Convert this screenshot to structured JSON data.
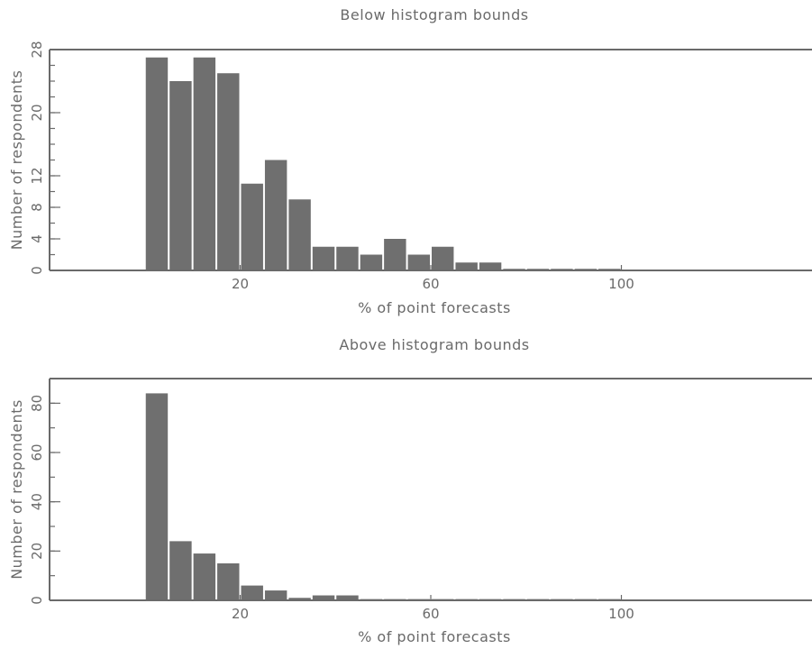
{
  "chart_data": [
    {
      "type": "bar",
      "title": "Below histogram bounds",
      "xlabel": "% of point forecasts",
      "ylabel": "Number of respondents",
      "xlim": [
        -20,
        140
      ],
      "ylim": [
        0,
        28
      ],
      "xticks": [
        20,
        60,
        100
      ],
      "yticks": [
        0,
        4,
        8,
        12,
        20,
        28
      ],
      "yminor": [
        0,
        2,
        4,
        6,
        8,
        10,
        12,
        14,
        16,
        18,
        20,
        22,
        24,
        26,
        28
      ],
      "bin_width": 5,
      "bin_centers": [
        2.5,
        7.5,
        12.5,
        17.5,
        22.5,
        27.5,
        32.5,
        37.5,
        42.5,
        47.5,
        52.5,
        57.5,
        62.5,
        67.5,
        72.5,
        77.5,
        82.5,
        87.5,
        92.5,
        97.5
      ],
      "values": [
        27,
        24,
        27,
        25,
        11,
        14,
        9,
        3,
        3,
        2,
        4,
        2,
        3,
        1,
        1,
        0.2,
        0.2,
        0.2,
        0.2,
        0.2
      ],
      "grid": false
    },
    {
      "type": "bar",
      "title": "Above histogram bounds",
      "xlabel": "% of point forecasts",
      "ylabel": "Number of respondents",
      "xlim": [
        -20,
        140
      ],
      "ylim": [
        0,
        90
      ],
      "xticks": [
        20,
        60,
        100
      ],
      "yticks": [
        0,
        20,
        40,
        60,
        80
      ],
      "yminor": [
        0,
        10,
        20,
        30,
        40,
        50,
        60,
        70,
        80,
        90
      ],
      "bin_width": 5,
      "bin_centers": [
        2.5,
        7.5,
        12.5,
        17.5,
        22.5,
        27.5,
        32.5,
        37.5,
        42.5,
        47.5,
        52.5,
        57.5,
        62.5,
        67.5,
        72.5,
        77.5,
        82.5,
        87.5,
        92.5,
        97.5
      ],
      "values": [
        84,
        24,
        19,
        15,
        6,
        4,
        1,
        2,
        2,
        0.5,
        0.5,
        0.5,
        0.5,
        0.5,
        0.5,
        0.5,
        0.5,
        0.5,
        0.5,
        0.5
      ],
      "grid": false
    }
  ]
}
